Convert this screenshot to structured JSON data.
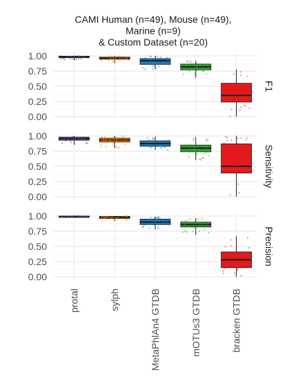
{
  "chart_data": {
    "type": "box",
    "title": "CAMI Human (n=49), Mouse (n=49),\nMarine (n=9)\n& Custom Dataset (n=20)",
    "categories": [
      "protal",
      "sylph",
      "MetaPhlAn4 GTDB",
      "mOTUs3 GTDB",
      "bracken GTDB"
    ],
    "colors": [
      "#6a3d9a",
      "#ff7f00",
      "#1f78b4",
      "#33a02c",
      "#e31a1c"
    ],
    "ylim": [
      0,
      1
    ],
    "yticks": [
      0,
      0.25,
      0.5,
      0.75,
      1
    ],
    "ytick_labels": [
      "0.00",
      "0.25",
      "0.50",
      "0.75",
      "1.00"
    ],
    "grid": true,
    "panels": [
      {
        "label": "F1",
        "boxes": [
          {
            "q1": 0.97,
            "median": 0.985,
            "q3": 0.995,
            "whisker_low": 0.93,
            "whisker_high": 1.0
          },
          {
            "q1": 0.945,
            "median": 0.965,
            "q3": 0.98,
            "whisker_low": 0.88,
            "whisker_high": 1.0
          },
          {
            "q1": 0.86,
            "median": 0.92,
            "q3": 0.955,
            "whisker_low": 0.78,
            "whisker_high": 1.0
          },
          {
            "q1": 0.77,
            "median": 0.82,
            "q3": 0.865,
            "whisker_low": 0.64,
            "whisker_high": 0.92
          },
          {
            "q1": 0.24,
            "median": 0.35,
            "q3": 0.55,
            "whisker_low": 0.0,
            "whisker_high": 0.78
          }
        ]
      },
      {
        "label": "Sensitivity",
        "boxes": [
          {
            "q1": 0.93,
            "median": 0.96,
            "q3": 0.98,
            "whisker_low": 0.86,
            "whisker_high": 1.0
          },
          {
            "q1": 0.9,
            "median": 0.935,
            "q3": 0.965,
            "whisker_low": 0.8,
            "whisker_high": 1.0
          },
          {
            "q1": 0.83,
            "median": 0.875,
            "q3": 0.92,
            "whisker_low": 0.77,
            "whisker_high": 0.99
          },
          {
            "q1": 0.74,
            "median": 0.8,
            "q3": 0.85,
            "whisker_low": 0.6,
            "whisker_high": 0.98
          },
          {
            "q1": 0.39,
            "median": 0.5,
            "q3": 0.87,
            "whisker_low": 0.0,
            "whisker_high": 1.0
          }
        ]
      },
      {
        "label": "Precision",
        "boxes": [
          {
            "q1": 0.99,
            "median": 0.995,
            "q3": 1.0,
            "whisker_low": 0.97,
            "whisker_high": 1.0
          },
          {
            "q1": 0.96,
            "median": 0.98,
            "q3": 0.995,
            "whisker_low": 0.92,
            "whisker_high": 1.0
          },
          {
            "q1": 0.86,
            "median": 0.9,
            "q3": 0.95,
            "whisker_low": 0.78,
            "whisker_high": 0.99
          },
          {
            "q1": 0.82,
            "median": 0.86,
            "q3": 0.9,
            "whisker_low": 0.69,
            "whisker_high": 0.96
          },
          {
            "q1": 0.15,
            "median": 0.28,
            "q3": 0.41,
            "whisker_low": 0.0,
            "whisker_high": 0.67
          }
        ]
      }
    ]
  }
}
